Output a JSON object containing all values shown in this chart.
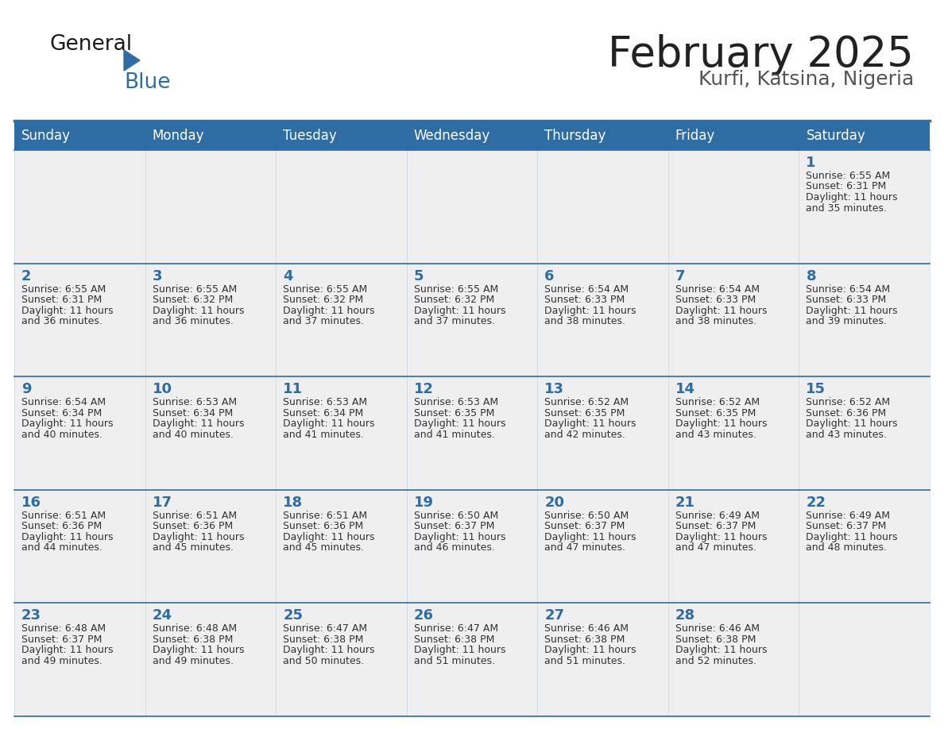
{
  "title": "February 2025",
  "subtitle": "Kurfi, Katsina, Nigeria",
  "days_of_week": [
    "Sunday",
    "Monday",
    "Tuesday",
    "Wednesday",
    "Thursday",
    "Friday",
    "Saturday"
  ],
  "header_bg": "#2E6DA4",
  "header_text": "#FFFFFF",
  "cell_bg": "#EFEFEF",
  "border_color": "#2E6DA4",
  "day_number_color": "#2E6DA4",
  "info_color": "#333333",
  "title_color": "#222222",
  "subtitle_color": "#555555",
  "logo_general_color": "#1a1a1a",
  "logo_blue_color": "#2E6DA4",
  "calendar_data": [
    [
      null,
      null,
      null,
      null,
      null,
      null,
      {
        "day": 1,
        "sunrise": "6:55 AM",
        "sunset": "6:31 PM",
        "daylight": "11 hours and 35 minutes."
      }
    ],
    [
      {
        "day": 2,
        "sunrise": "6:55 AM",
        "sunset": "6:31 PM",
        "daylight": "11 hours and 36 minutes."
      },
      {
        "day": 3,
        "sunrise": "6:55 AM",
        "sunset": "6:32 PM",
        "daylight": "11 hours and 36 minutes."
      },
      {
        "day": 4,
        "sunrise": "6:55 AM",
        "sunset": "6:32 PM",
        "daylight": "11 hours and 37 minutes."
      },
      {
        "day": 5,
        "sunrise": "6:55 AM",
        "sunset": "6:32 PM",
        "daylight": "11 hours and 37 minutes."
      },
      {
        "day": 6,
        "sunrise": "6:54 AM",
        "sunset": "6:33 PM",
        "daylight": "11 hours and 38 minutes."
      },
      {
        "day": 7,
        "sunrise": "6:54 AM",
        "sunset": "6:33 PM",
        "daylight": "11 hours and 38 minutes."
      },
      {
        "day": 8,
        "sunrise": "6:54 AM",
        "sunset": "6:33 PM",
        "daylight": "11 hours and 39 minutes."
      }
    ],
    [
      {
        "day": 9,
        "sunrise": "6:54 AM",
        "sunset": "6:34 PM",
        "daylight": "11 hours and 40 minutes."
      },
      {
        "day": 10,
        "sunrise": "6:53 AM",
        "sunset": "6:34 PM",
        "daylight": "11 hours and 40 minutes."
      },
      {
        "day": 11,
        "sunrise": "6:53 AM",
        "sunset": "6:34 PM",
        "daylight": "11 hours and 41 minutes."
      },
      {
        "day": 12,
        "sunrise": "6:53 AM",
        "sunset": "6:35 PM",
        "daylight": "11 hours and 41 minutes."
      },
      {
        "day": 13,
        "sunrise": "6:52 AM",
        "sunset": "6:35 PM",
        "daylight": "11 hours and 42 minutes."
      },
      {
        "day": 14,
        "sunrise": "6:52 AM",
        "sunset": "6:35 PM",
        "daylight": "11 hours and 43 minutes."
      },
      {
        "day": 15,
        "sunrise": "6:52 AM",
        "sunset": "6:36 PM",
        "daylight": "11 hours and 43 minutes."
      }
    ],
    [
      {
        "day": 16,
        "sunrise": "6:51 AM",
        "sunset": "6:36 PM",
        "daylight": "11 hours and 44 minutes."
      },
      {
        "day": 17,
        "sunrise": "6:51 AM",
        "sunset": "6:36 PM",
        "daylight": "11 hours and 45 minutes."
      },
      {
        "day": 18,
        "sunrise": "6:51 AM",
        "sunset": "6:36 PM",
        "daylight": "11 hours and 45 minutes."
      },
      {
        "day": 19,
        "sunrise": "6:50 AM",
        "sunset": "6:37 PM",
        "daylight": "11 hours and 46 minutes."
      },
      {
        "day": 20,
        "sunrise": "6:50 AM",
        "sunset": "6:37 PM",
        "daylight": "11 hours and 47 minutes."
      },
      {
        "day": 21,
        "sunrise": "6:49 AM",
        "sunset": "6:37 PM",
        "daylight": "11 hours and 47 minutes."
      },
      {
        "day": 22,
        "sunrise": "6:49 AM",
        "sunset": "6:37 PM",
        "daylight": "11 hours and 48 minutes."
      }
    ],
    [
      {
        "day": 23,
        "sunrise": "6:48 AM",
        "sunset": "6:37 PM",
        "daylight": "11 hours and 49 minutes."
      },
      {
        "day": 24,
        "sunrise": "6:48 AM",
        "sunset": "6:38 PM",
        "daylight": "11 hours and 49 minutes."
      },
      {
        "day": 25,
        "sunrise": "6:47 AM",
        "sunset": "6:38 PM",
        "daylight": "11 hours and 50 minutes."
      },
      {
        "day": 26,
        "sunrise": "6:47 AM",
        "sunset": "6:38 PM",
        "daylight": "11 hours and 51 minutes."
      },
      {
        "day": 27,
        "sunrise": "6:46 AM",
        "sunset": "6:38 PM",
        "daylight": "11 hours and 51 minutes."
      },
      {
        "day": 28,
        "sunrise": "6:46 AM",
        "sunset": "6:38 PM",
        "daylight": "11 hours and 52 minutes."
      },
      null
    ]
  ]
}
